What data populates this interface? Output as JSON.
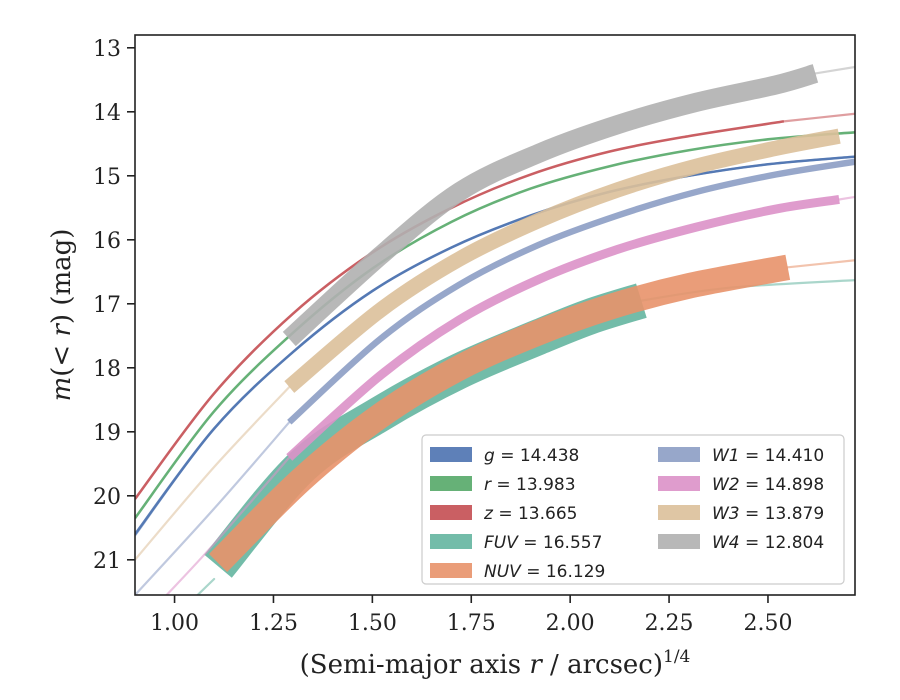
{
  "chart_data": {
    "type": "line",
    "xlabel": "(Semi-major axis r / arcsec)^{1/4}",
    "xlabel_main": "(Semi-major axis ",
    "xlabel_var": "r",
    "xlabel_tail": " / arcsec)",
    "xlabel_exp": "1/4",
    "ylabel": "m(< r) (mag)",
    "ylabel_m": "m",
    "ylabel_paren_open": "(",
    "ylabel_lt": "< ",
    "ylabel_r": "r",
    "ylabel_tail": ") (mag)",
    "xlim": [
      0.9,
      2.72
    ],
    "ylim": [
      21.55,
      12.8
    ],
    "y_inverted": true,
    "xticks": [
      1.0,
      1.25,
      1.5,
      1.75,
      2.0,
      2.25,
      2.5
    ],
    "xtick_labels": [
      "1.00",
      "1.25",
      "1.50",
      "1.75",
      "2.00",
      "2.25",
      "2.50"
    ],
    "yticks": [
      13,
      14,
      15,
      16,
      17,
      18,
      19,
      20,
      21
    ],
    "ytick_labels": [
      "13",
      "14",
      "15",
      "16",
      "17",
      "18",
      "19",
      "20",
      "21"
    ],
    "grid": false,
    "legend_position": "lower-right",
    "series": [
      {
        "name": "g",
        "legend": "g = 14.438",
        "color": "#4c72b0",
        "extrapolated": [
          [
            0.9,
            20.62
          ],
          [
            1.1,
            18.95
          ],
          [
            1.3,
            17.75
          ],
          [
            1.5,
            16.8
          ],
          [
            1.7,
            16.12
          ],
          [
            1.9,
            15.62
          ],
          [
            2.1,
            15.25
          ],
          [
            2.3,
            15.0
          ],
          [
            2.5,
            14.82
          ],
          [
            2.72,
            14.7
          ]
        ],
        "measured": [
          [
            0.9,
            20.6
          ],
          [
            1.1,
            18.95
          ],
          [
            1.3,
            17.75
          ],
          [
            1.5,
            16.8
          ],
          [
            1.7,
            16.12
          ],
          [
            1.9,
            15.62
          ],
          [
            2.1,
            15.25
          ],
          [
            2.3,
            15.0
          ],
          [
            2.5,
            14.82
          ],
          [
            2.72,
            14.7
          ]
        ],
        "band_half_width": 0.02
      },
      {
        "name": "r",
        "legend": "r = 13.983",
        "color": "#55a868",
        "measured": [
          [
            0.9,
            20.35
          ],
          [
            1.1,
            18.68
          ],
          [
            1.3,
            17.45
          ],
          [
            1.5,
            16.45
          ],
          [
            1.7,
            15.72
          ],
          [
            1.9,
            15.2
          ],
          [
            2.1,
            14.85
          ],
          [
            2.3,
            14.6
          ],
          [
            2.5,
            14.43
          ],
          [
            2.72,
            14.32
          ]
        ],
        "band_half_width": 0.02
      },
      {
        "name": "z",
        "legend": "z = 13.665",
        "color": "#c44e52",
        "measured": [
          [
            0.9,
            20.05
          ],
          [
            1.1,
            18.4
          ],
          [
            1.3,
            17.15
          ],
          [
            1.5,
            16.2
          ],
          [
            1.7,
            15.5
          ],
          [
            1.9,
            14.98
          ],
          [
            2.1,
            14.62
          ],
          [
            2.3,
            14.38
          ],
          [
            2.54,
            14.15
          ]
        ],
        "extrapolated": [
          [
            2.54,
            14.15
          ],
          [
            2.72,
            14.03
          ]
        ],
        "band_half_width": 0.02
      },
      {
        "name": "FUV",
        "legend": "FUV = 16.557",
        "color": "#64b5a0",
        "extrapolated": [
          [
            0.9,
            22.5
          ],
          [
            1.1,
            21.3
          ]
        ],
        "measured": [
          [
            1.11,
            21.1
          ],
          [
            1.32,
            19.55
          ],
          [
            1.52,
            18.72
          ],
          [
            1.72,
            18.05
          ],
          [
            1.92,
            17.52
          ],
          [
            2.05,
            17.2
          ],
          [
            2.18,
            16.95
          ]
        ],
        "extrapolated2": [
          [
            2.18,
            16.95
          ],
          [
            2.4,
            16.75
          ],
          [
            2.72,
            16.63
          ]
        ],
        "band_half_width": 0.28
      },
      {
        "name": "NUV",
        "legend": "NUV = 16.129",
        "color": "#e8926a",
        "measured": [
          [
            1.11,
            21.05
          ],
          [
            1.32,
            19.75
          ],
          [
            1.52,
            18.75
          ],
          [
            1.72,
            18.0
          ],
          [
            1.92,
            17.45
          ],
          [
            2.1,
            17.05
          ],
          [
            2.3,
            16.72
          ],
          [
            2.55,
            16.43
          ]
        ],
        "extrapolated": [
          [
            2.55,
            16.43
          ],
          [
            2.72,
            16.32
          ]
        ],
        "band_half_width": 0.2
      },
      {
        "name": "W1",
        "legend": "W1 = 14.410",
        "color": "#8c9dc4",
        "extrapolated": [
          [
            0.9,
            21.55
          ],
          [
            1.1,
            20.2
          ],
          [
            1.29,
            18.85
          ]
        ],
        "measured": [
          [
            1.29,
            18.85
          ],
          [
            1.52,
            17.55
          ],
          [
            1.72,
            16.7
          ],
          [
            1.92,
            16.08
          ],
          [
            2.12,
            15.62
          ],
          [
            2.32,
            15.25
          ],
          [
            2.52,
            14.98
          ],
          [
            2.72,
            14.78
          ]
        ],
        "band_half_width": 0.05
      },
      {
        "name": "W2",
        "legend": "W2 = 14.898",
        "color": "#dc91c8",
        "extrapolated": [
          [
            0.98,
            21.55
          ],
          [
            1.1,
            20.75
          ],
          [
            1.29,
            19.4
          ]
        ],
        "measured": [
          [
            1.29,
            19.4
          ],
          [
            1.52,
            18.12
          ],
          [
            1.72,
            17.25
          ],
          [
            1.92,
            16.62
          ],
          [
            2.12,
            16.15
          ],
          [
            2.32,
            15.8
          ],
          [
            2.52,
            15.52
          ],
          [
            2.68,
            15.37
          ]
        ],
        "extrapolated2": [
          [
            2.68,
            15.37
          ],
          [
            2.72,
            15.33
          ]
        ],
        "band_half_width": 0.07
      },
      {
        "name": "W3",
        "legend": "W3 = 13.879",
        "color": "#dcc09a",
        "extrapolated": [
          [
            0.9,
            21.0
          ],
          [
            1.1,
            19.55
          ],
          [
            1.29,
            18.3
          ]
        ],
        "measured": [
          [
            1.29,
            18.3
          ],
          [
            1.52,
            17.1
          ],
          [
            1.72,
            16.3
          ],
          [
            1.92,
            15.7
          ],
          [
            2.12,
            15.22
          ],
          [
            2.32,
            14.85
          ],
          [
            2.52,
            14.57
          ],
          [
            2.68,
            14.38
          ]
        ],
        "band_half_width": 0.12
      },
      {
        "name": "W4",
        "legend": "W4 = 12.804",
        "color": "#b0b0b0",
        "measured": [
          [
            1.29,
            17.55
          ],
          [
            1.52,
            16.25
          ],
          [
            1.72,
            15.25
          ],
          [
            1.92,
            14.65
          ],
          [
            2.12,
            14.2
          ],
          [
            2.32,
            13.85
          ],
          [
            2.52,
            13.58
          ],
          [
            2.62,
            13.4
          ]
        ],
        "extrapolated": [
          [
            2.62,
            13.4
          ],
          [
            2.72,
            13.3
          ]
        ],
        "band_half_width": 0.15
      }
    ]
  }
}
